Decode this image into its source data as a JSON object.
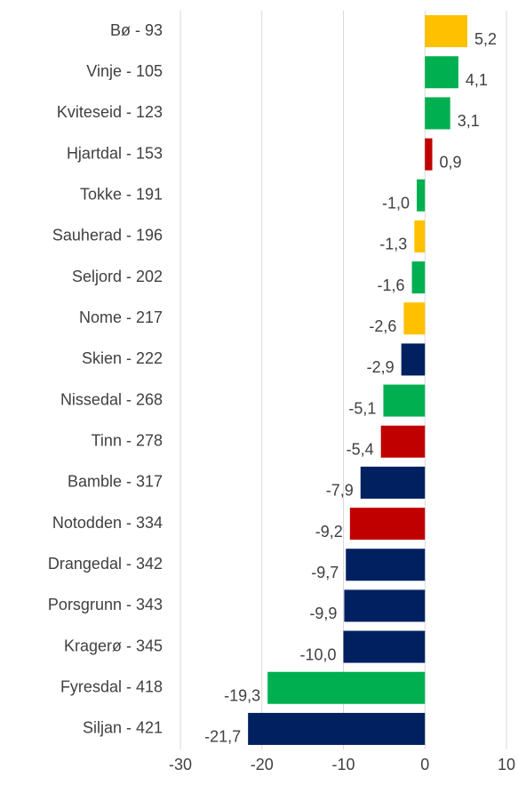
{
  "chart_data": {
    "type": "barh",
    "categories": [
      "Bø - 93",
      "Vinje - 105",
      "Kviteseid - 123",
      "Hjartdal - 153",
      "Tokke - 191",
      "Sauherad - 196",
      "Seljord - 202",
      "Nome - 217",
      "Skien - 222",
      "Nissedal - 268",
      "Tinn - 278",
      "Bamble - 317",
      "Notodden - 334",
      "Drangedal - 342",
      "Porsgrunn - 343",
      "Kragerø - 345",
      "Fyresdal - 418",
      "Siljan - 421"
    ],
    "values": [
      5.2,
      4.1,
      3.1,
      0.9,
      -1.0,
      -1.3,
      -1.6,
      -2.6,
      -2.9,
      -5.1,
      -5.4,
      -7.9,
      -9.2,
      -9.7,
      -9.9,
      -10.0,
      -19.3,
      -21.7
    ],
    "value_labels": [
      "5,2",
      "4,1",
      "3,1",
      "0,9",
      "-1,0",
      "-1,3",
      "-1,6",
      "-2,6",
      "-2,9",
      "-5,1",
      "-5,4",
      "-7,9",
      "-9,2",
      "-9,7",
      "-9,9",
      "-10,0",
      "-19,3",
      "-21,7"
    ],
    "colors": [
      "#ffc000",
      "#00b050",
      "#00b050",
      "#c00000",
      "#00b050",
      "#ffc000",
      "#00b050",
      "#ffc000",
      "#002060",
      "#00b050",
      "#c00000",
      "#002060",
      "#c00000",
      "#002060",
      "#002060",
      "#002060",
      "#00b050",
      "#002060"
    ],
    "xlim": [
      -30,
      10
    ],
    "xticks": [
      -30,
      -20,
      -10,
      0,
      10
    ],
    "grid": true
  }
}
